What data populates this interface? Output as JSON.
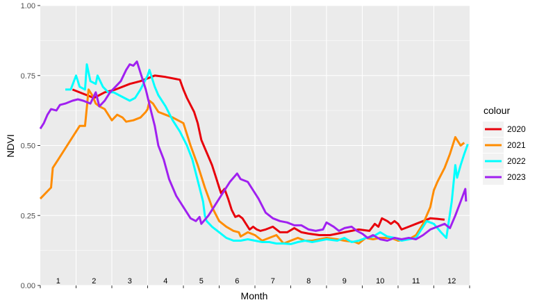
{
  "chart_data": {
    "type": "line",
    "title": "",
    "xlabel": "Month",
    "ylabel": "NDVI",
    "xlim": [
      0.5,
      12.5
    ],
    "ylim": [
      0,
      1
    ],
    "y_ticks": [
      "0.00",
      "0.25",
      "0.50",
      "0.75",
      "1.00"
    ],
    "y_tick_values": [
      0,
      0.25,
      0.5,
      0.75,
      1
    ],
    "month_labels": [
      "1",
      "2",
      "3",
      "4",
      "5",
      "6",
      "7",
      "8",
      "9",
      "10",
      "11",
      "12"
    ],
    "grid": true,
    "legend": {
      "title": "colour",
      "position": "right"
    },
    "series": [
      {
        "name": "2020",
        "color": "#E8000B",
        "points": [
          [
            1.4,
            0.7
          ],
          [
            1.8,
            0.68
          ],
          [
            2.0,
            0.67
          ],
          [
            2.3,
            0.69
          ],
          [
            2.6,
            0.7
          ],
          [
            3.0,
            0.72
          ],
          [
            3.3,
            0.73
          ],
          [
            3.5,
            0.74
          ],
          [
            3.7,
            0.75
          ],
          [
            4.0,
            0.745
          ],
          [
            4.4,
            0.735
          ],
          [
            4.5,
            0.7
          ],
          [
            4.6,
            0.67
          ],
          [
            4.8,
            0.62
          ],
          [
            4.9,
            0.58
          ],
          [
            5.0,
            0.52
          ],
          [
            5.1,
            0.49
          ],
          [
            5.2,
            0.46
          ],
          [
            5.3,
            0.43
          ],
          [
            5.4,
            0.39
          ],
          [
            5.5,
            0.35
          ],
          [
            5.55,
            0.33
          ],
          [
            5.65,
            0.345
          ],
          [
            5.75,
            0.31
          ],
          [
            5.85,
            0.27
          ],
          [
            5.95,
            0.245
          ],
          [
            6.05,
            0.25
          ],
          [
            6.15,
            0.24
          ],
          [
            6.25,
            0.22
          ],
          [
            6.35,
            0.2
          ],
          [
            6.45,
            0.21
          ],
          [
            6.55,
            0.2
          ],
          [
            6.65,
            0.195
          ],
          [
            6.8,
            0.2
          ],
          [
            7.0,
            0.21
          ],
          [
            7.2,
            0.19
          ],
          [
            7.4,
            0.19
          ],
          [
            7.6,
            0.205
          ],
          [
            7.8,
            0.19
          ],
          [
            8.0,
            0.185
          ],
          [
            8.3,
            0.18
          ],
          [
            8.6,
            0.18
          ],
          [
            9.0,
            0.19
          ],
          [
            9.4,
            0.2
          ],
          [
            9.7,
            0.195
          ],
          [
            9.85,
            0.22
          ],
          [
            9.95,
            0.21
          ],
          [
            10.05,
            0.24
          ],
          [
            10.2,
            0.23
          ],
          [
            10.3,
            0.22
          ],
          [
            10.4,
            0.23
          ],
          [
            10.5,
            0.22
          ],
          [
            10.6,
            0.2
          ],
          [
            10.8,
            0.21
          ],
          [
            11.0,
            0.22
          ],
          [
            11.2,
            0.23
          ],
          [
            11.4,
            0.24
          ],
          [
            11.6,
            0.238
          ],
          [
            11.8,
            0.235
          ]
        ]
      },
      {
        "name": "2021",
        "color": "#FF8C00",
        "points": [
          [
            0.5,
            0.31
          ],
          [
            0.8,
            0.35
          ],
          [
            0.85,
            0.42
          ],
          [
            1.0,
            0.45
          ],
          [
            1.3,
            0.51
          ],
          [
            1.6,
            0.57
          ],
          [
            1.75,
            0.57
          ],
          [
            1.85,
            0.7
          ],
          [
            1.95,
            0.68
          ],
          [
            2.05,
            0.65
          ],
          [
            2.15,
            0.64
          ],
          [
            2.3,
            0.63
          ],
          [
            2.5,
            0.59
          ],
          [
            2.65,
            0.61
          ],
          [
            2.8,
            0.6
          ],
          [
            2.9,
            0.585
          ],
          [
            3.1,
            0.59
          ],
          [
            3.3,
            0.6
          ],
          [
            3.45,
            0.62
          ],
          [
            3.5,
            0.63
          ],
          [
            3.55,
            0.66
          ],
          [
            3.65,
            0.65
          ],
          [
            3.8,
            0.62
          ],
          [
            4.0,
            0.61
          ],
          [
            4.2,
            0.6
          ],
          [
            4.5,
            0.58
          ],
          [
            4.7,
            0.5
          ],
          [
            4.9,
            0.43
          ],
          [
            5.1,
            0.35
          ],
          [
            5.3,
            0.28
          ],
          [
            5.5,
            0.23
          ],
          [
            5.7,
            0.21
          ],
          [
            5.9,
            0.195
          ],
          [
            6.05,
            0.19
          ],
          [
            6.1,
            0.175
          ],
          [
            6.3,
            0.19
          ],
          [
            6.5,
            0.18
          ],
          [
            6.7,
            0.16
          ],
          [
            6.9,
            0.17
          ],
          [
            7.1,
            0.18
          ],
          [
            7.3,
            0.15
          ],
          [
            7.5,
            0.16
          ],
          [
            7.7,
            0.17
          ],
          [
            7.9,
            0.16
          ],
          [
            8.1,
            0.16
          ],
          [
            8.3,
            0.165
          ],
          [
            8.5,
            0.17
          ],
          [
            8.8,
            0.165
          ],
          [
            9.0,
            0.16
          ],
          [
            9.3,
            0.155
          ],
          [
            9.4,
            0.15
          ],
          [
            9.6,
            0.17
          ],
          [
            9.8,
            0.165
          ],
          [
            10.0,
            0.17
          ],
          [
            10.3,
            0.17
          ],
          [
            10.5,
            0.16
          ],
          [
            10.8,
            0.165
          ],
          [
            11.0,
            0.18
          ],
          [
            11.2,
            0.22
          ],
          [
            11.4,
            0.28
          ],
          [
            11.5,
            0.34
          ],
          [
            11.6,
            0.37
          ],
          [
            11.8,
            0.42
          ],
          [
            11.95,
            0.47
          ],
          [
            12.1,
            0.53
          ],
          [
            12.2,
            0.51
          ],
          [
            12.25,
            0.5
          ],
          [
            12.35,
            0.51
          ]
        ]
      },
      {
        "name": "2022",
        "color": "#00FFFF",
        "points": [
          [
            1.2,
            0.7
          ],
          [
            1.35,
            0.7
          ],
          [
            1.5,
            0.75
          ],
          [
            1.6,
            0.71
          ],
          [
            1.75,
            0.7
          ],
          [
            1.8,
            0.79
          ],
          [
            1.9,
            0.73
          ],
          [
            2.05,
            0.72
          ],
          [
            2.1,
            0.75
          ],
          [
            2.25,
            0.71
          ],
          [
            2.4,
            0.69
          ],
          [
            2.55,
            0.69
          ],
          [
            2.7,
            0.68
          ],
          [
            2.85,
            0.67
          ],
          [
            3.0,
            0.66
          ],
          [
            3.15,
            0.67
          ],
          [
            3.3,
            0.7
          ],
          [
            3.5,
            0.75
          ],
          [
            3.55,
            0.77
          ],
          [
            3.7,
            0.71
          ],
          [
            3.8,
            0.68
          ],
          [
            4.0,
            0.64
          ],
          [
            4.2,
            0.59
          ],
          [
            4.4,
            0.55
          ],
          [
            4.6,
            0.5
          ],
          [
            4.75,
            0.45
          ],
          [
            4.85,
            0.4
          ],
          [
            4.95,
            0.35
          ],
          [
            5.05,
            0.3
          ],
          [
            5.1,
            0.25
          ],
          [
            5.15,
            0.23
          ],
          [
            5.3,
            0.21
          ],
          [
            5.5,
            0.19
          ],
          [
            5.7,
            0.17
          ],
          [
            5.9,
            0.16
          ],
          [
            6.1,
            0.16
          ],
          [
            6.3,
            0.165
          ],
          [
            6.5,
            0.16
          ],
          [
            6.7,
            0.155
          ],
          [
            6.9,
            0.155
          ],
          [
            7.1,
            0.15
          ],
          [
            7.3,
            0.15
          ],
          [
            7.5,
            0.148
          ],
          [
            7.7,
            0.155
          ],
          [
            7.9,
            0.16
          ],
          [
            8.1,
            0.155
          ],
          [
            8.3,
            0.16
          ],
          [
            8.5,
            0.165
          ],
          [
            8.8,
            0.16
          ],
          [
            9.0,
            0.17
          ],
          [
            9.2,
            0.155
          ],
          [
            9.4,
            0.16
          ],
          [
            9.6,
            0.17
          ],
          [
            9.8,
            0.175
          ],
          [
            10.0,
            0.19
          ],
          [
            10.2,
            0.175
          ],
          [
            10.4,
            0.17
          ],
          [
            10.6,
            0.16
          ],
          [
            10.8,
            0.165
          ],
          [
            11.0,
            0.17
          ],
          [
            11.2,
            0.21
          ],
          [
            11.3,
            0.23
          ],
          [
            11.5,
            0.22
          ],
          [
            11.7,
            0.19
          ],
          [
            11.85,
            0.17
          ],
          [
            12.0,
            0.3
          ],
          [
            12.1,
            0.43
          ],
          [
            12.15,
            0.385
          ],
          [
            12.25,
            0.43
          ],
          [
            12.35,
            0.47
          ],
          [
            12.45,
            0.505
          ]
        ]
      },
      {
        "name": "2023",
        "color": "#A020F0",
        "points": [
          [
            0.5,
            0.56
          ],
          [
            0.6,
            0.58
          ],
          [
            0.7,
            0.61
          ],
          [
            0.8,
            0.63
          ],
          [
            0.95,
            0.625
          ],
          [
            1.05,
            0.645
          ],
          [
            1.2,
            0.65
          ],
          [
            1.4,
            0.66
          ],
          [
            1.55,
            0.665
          ],
          [
            1.7,
            0.66
          ],
          [
            1.9,
            0.65
          ],
          [
            2.05,
            0.69
          ],
          [
            2.15,
            0.64
          ],
          [
            2.3,
            0.66
          ],
          [
            2.45,
            0.69
          ],
          [
            2.6,
            0.71
          ],
          [
            2.75,
            0.73
          ],
          [
            2.9,
            0.77
          ],
          [
            3.0,
            0.79
          ],
          [
            3.1,
            0.785
          ],
          [
            3.2,
            0.8
          ],
          [
            3.3,
            0.76
          ],
          [
            3.45,
            0.7
          ],
          [
            3.6,
            0.62
          ],
          [
            3.7,
            0.57
          ],
          [
            3.8,
            0.5
          ],
          [
            3.95,
            0.45
          ],
          [
            4.1,
            0.38
          ],
          [
            4.3,
            0.32
          ],
          [
            4.5,
            0.28
          ],
          [
            4.7,
            0.24
          ],
          [
            4.85,
            0.23
          ],
          [
            4.95,
            0.245
          ],
          [
            5.0,
            0.22
          ],
          [
            5.2,
            0.25
          ],
          [
            5.4,
            0.29
          ],
          [
            5.6,
            0.33
          ],
          [
            5.8,
            0.37
          ],
          [
            6.0,
            0.4
          ],
          [
            6.1,
            0.38
          ],
          [
            6.3,
            0.37
          ],
          [
            6.45,
            0.34
          ],
          [
            6.6,
            0.31
          ],
          [
            6.8,
            0.26
          ],
          [
            7.0,
            0.24
          ],
          [
            7.2,
            0.23
          ],
          [
            7.4,
            0.225
          ],
          [
            7.6,
            0.215
          ],
          [
            7.8,
            0.215
          ],
          [
            8.0,
            0.2
          ],
          [
            8.2,
            0.195
          ],
          [
            8.4,
            0.2
          ],
          [
            8.5,
            0.225
          ],
          [
            8.7,
            0.21
          ],
          [
            8.85,
            0.195
          ],
          [
            9.0,
            0.205
          ],
          [
            9.2,
            0.21
          ],
          [
            9.35,
            0.195
          ],
          [
            9.5,
            0.185
          ],
          [
            9.65,
            0.17
          ],
          [
            9.8,
            0.18
          ],
          [
            10.0,
            0.165
          ],
          [
            10.2,
            0.16
          ],
          [
            10.4,
            0.17
          ],
          [
            10.6,
            0.165
          ],
          [
            10.8,
            0.17
          ],
          [
            11.0,
            0.165
          ],
          [
            11.2,
            0.18
          ],
          [
            11.4,
            0.2
          ],
          [
            11.6,
            0.21
          ],
          [
            11.8,
            0.22
          ],
          [
            11.95,
            0.205
          ],
          [
            12.1,
            0.25
          ],
          [
            12.25,
            0.3
          ],
          [
            12.38,
            0.345
          ],
          [
            12.4,
            0.3
          ]
        ]
      }
    ]
  }
}
